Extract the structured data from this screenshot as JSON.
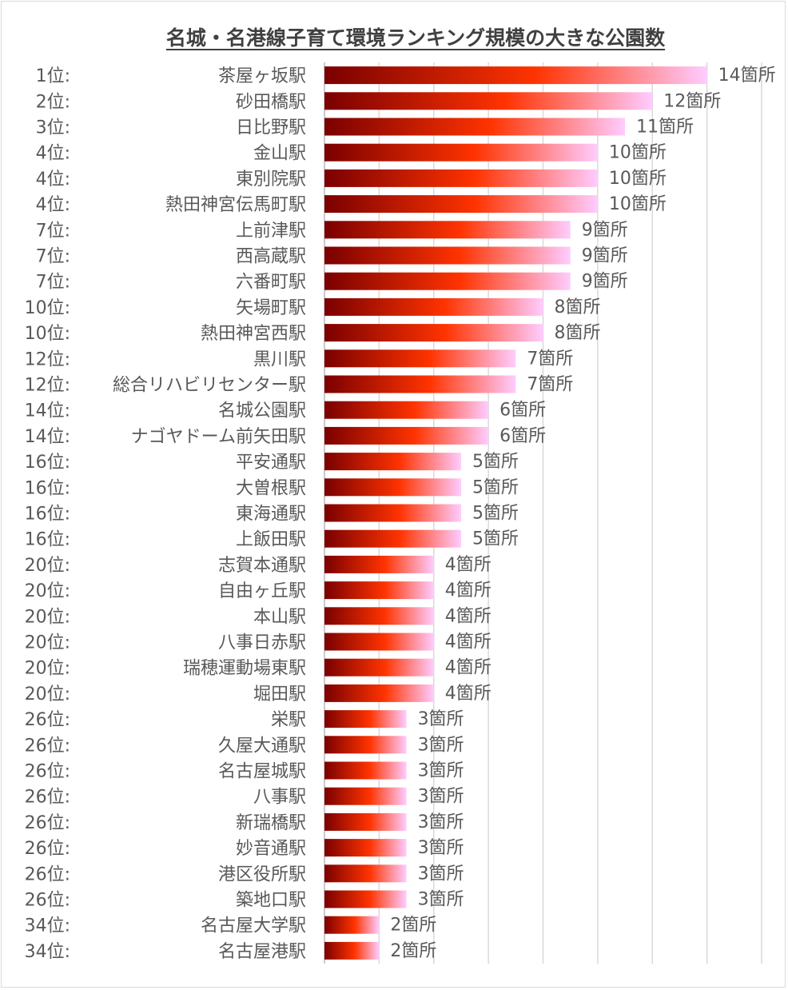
{
  "chart_data": {
    "type": "bar",
    "orientation": "horizontal",
    "title": "名城・名港線子育て環境ランキング規模の大きな公園数",
    "value_suffix": "箇所",
    "xlim": [
      0,
      16
    ],
    "grid": true,
    "gradient_colors": [
      "#7a0000",
      "#ff3300",
      "#ffccff"
    ],
    "ranks": [
      "1位:",
      "2位:",
      "3位:",
      "4位:",
      "4位:",
      "4位:",
      "7位:",
      "7位:",
      "7位:",
      "10位:",
      "10位:",
      "12位:",
      "12位:",
      "14位:",
      "14位:",
      "16位:",
      "16位:",
      "16位:",
      "16位:",
      "20位:",
      "20位:",
      "20位:",
      "20位:",
      "20位:",
      "20位:",
      "26位:",
      "26位:",
      "26位:",
      "26位:",
      "26位:",
      "26位:",
      "26位:",
      "26位:",
      "34位:",
      "34位:"
    ],
    "categories": [
      "茶屋ヶ坂駅",
      "砂田橋駅",
      "日比野駅",
      "金山駅",
      "東別院駅",
      "熱田神宮伝馬町駅",
      "上前津駅",
      "西高蔵駅",
      "六番町駅",
      "矢場町駅",
      "熱田神宮西駅",
      "黒川駅",
      "総合リハビリセンター駅",
      "名城公園駅",
      "ナゴヤドーム前矢田駅",
      "平安通駅",
      "大曽根駅",
      "東海通駅",
      "上飯田駅",
      "志賀本通駅",
      "自由ヶ丘駅",
      "本山駅",
      "八事日赤駅",
      "瑞穂運動場東駅",
      "堀田駅",
      "栄駅",
      "久屋大通駅",
      "名古屋城駅",
      "八事駅",
      "新瑞橋駅",
      "妙音通駅",
      "港区役所駅",
      "築地口駅",
      "名古屋大学駅",
      "名古屋港駅"
    ],
    "values": [
      14,
      12,
      11,
      10,
      10,
      10,
      9,
      9,
      9,
      8,
      8,
      7,
      7,
      6,
      6,
      5,
      5,
      5,
      5,
      4,
      4,
      4,
      4,
      4,
      4,
      3,
      3,
      3,
      3,
      3,
      3,
      3,
      3,
      2,
      2
    ]
  }
}
